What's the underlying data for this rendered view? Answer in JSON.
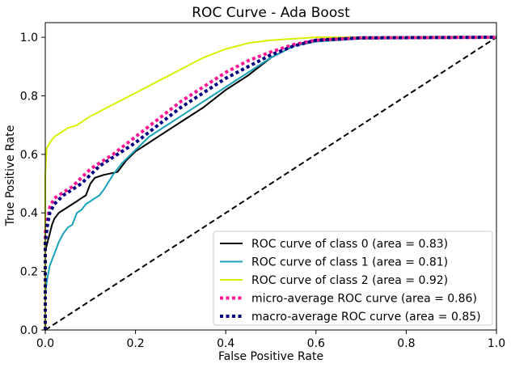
{
  "chart_data": {
    "type": "line",
    "title": "ROC Curve - Ada Boost",
    "xlabel": "False Positive Rate",
    "ylabel": "True Positive Rate",
    "xlim": [
      0.0,
      1.0
    ],
    "ylim": [
      0.0,
      1.05
    ],
    "xticks": [
      "0.0",
      "0.2",
      "0.4",
      "0.6",
      "0.8",
      "1.0"
    ],
    "yticks": [
      "0.0",
      "0.2",
      "0.4",
      "0.6",
      "0.8",
      "1.0"
    ],
    "grid": false,
    "legend_position": "lower-right",
    "series": [
      {
        "name": "ROC curve of class 0 (area = 0.83)",
        "color": "#000000",
        "style": "solid",
        "points": [
          [
            0,
            0
          ],
          [
            0,
            0.27
          ],
          [
            0.005,
            0.3
          ],
          [
            0.01,
            0.33
          ],
          [
            0.015,
            0.36
          ],
          [
            0.02,
            0.38
          ],
          [
            0.03,
            0.4
          ],
          [
            0.04,
            0.41
          ],
          [
            0.05,
            0.42
          ],
          [
            0.06,
            0.43
          ],
          [
            0.07,
            0.44
          ],
          [
            0.08,
            0.45
          ],
          [
            0.09,
            0.46
          ],
          [
            0.1,
            0.5
          ],
          [
            0.11,
            0.52
          ],
          [
            0.13,
            0.53
          ],
          [
            0.16,
            0.54
          ],
          [
            0.17,
            0.56
          ],
          [
            0.18,
            0.58
          ],
          [
            0.2,
            0.61
          ],
          [
            0.22,
            0.63
          ],
          [
            0.25,
            0.66
          ],
          [
            0.3,
            0.71
          ],
          [
            0.35,
            0.76
          ],
          [
            0.4,
            0.82
          ],
          [
            0.45,
            0.87
          ],
          [
            0.5,
            0.93
          ],
          [
            0.55,
            0.97
          ],
          [
            0.6,
            0.99
          ],
          [
            0.7,
            1.0
          ],
          [
            1.0,
            1.0
          ]
        ]
      },
      {
        "name": "ROC curve of class 1 (area = 0.81)",
        "color": "#17a2b8",
        "style": "solid",
        "points": [
          [
            0,
            0
          ],
          [
            0,
            0.13
          ],
          [
            0.005,
            0.18
          ],
          [
            0.01,
            0.22
          ],
          [
            0.02,
            0.26
          ],
          [
            0.03,
            0.3
          ],
          [
            0.04,
            0.33
          ],
          [
            0.05,
            0.35
          ],
          [
            0.06,
            0.36
          ],
          [
            0.07,
            0.4
          ],
          [
            0.08,
            0.41
          ],
          [
            0.09,
            0.43
          ],
          [
            0.1,
            0.44
          ],
          [
            0.11,
            0.45
          ],
          [
            0.12,
            0.46
          ],
          [
            0.13,
            0.48
          ],
          [
            0.15,
            0.53
          ],
          [
            0.17,
            0.57
          ],
          [
            0.19,
            0.6
          ],
          [
            0.21,
            0.63
          ],
          [
            0.23,
            0.66
          ],
          [
            0.25,
            0.68
          ],
          [
            0.3,
            0.73
          ],
          [
            0.35,
            0.78
          ],
          [
            0.4,
            0.83
          ],
          [
            0.45,
            0.88
          ],
          [
            0.5,
            0.93
          ],
          [
            0.55,
            0.97
          ],
          [
            0.6,
            0.985
          ],
          [
            0.7,
            0.995
          ],
          [
            1.0,
            1.0
          ]
        ]
      },
      {
        "name": "ROC curve of class 2 (area = 0.92)",
        "color": "#d8f000",
        "style": "solid",
        "points": [
          [
            0,
            0
          ],
          [
            0,
            0.53
          ],
          [
            0.003,
            0.62
          ],
          [
            0.01,
            0.64
          ],
          [
            0.02,
            0.66
          ],
          [
            0.03,
            0.67
          ],
          [
            0.05,
            0.69
          ],
          [
            0.07,
            0.7
          ],
          [
            0.1,
            0.73
          ],
          [
            0.15,
            0.77
          ],
          [
            0.2,
            0.81
          ],
          [
            0.25,
            0.85
          ],
          [
            0.3,
            0.89
          ],
          [
            0.35,
            0.93
          ],
          [
            0.4,
            0.96
          ],
          [
            0.45,
            0.98
          ],
          [
            0.5,
            0.99
          ],
          [
            0.55,
            0.995
          ],
          [
            0.6,
            1.0
          ],
          [
            1.0,
            1.0
          ]
        ]
      },
      {
        "name": "micro-average ROC curve (area = 0.86)",
        "color": "#ff1493",
        "style": "dotted",
        "points": [
          [
            0,
            0
          ],
          [
            0,
            0.33
          ],
          [
            0.005,
            0.38
          ],
          [
            0.01,
            0.42
          ],
          [
            0.02,
            0.45
          ],
          [
            0.04,
            0.47
          ],
          [
            0.06,
            0.49
          ],
          [
            0.08,
            0.52
          ],
          [
            0.1,
            0.55
          ],
          [
            0.12,
            0.57
          ],
          [
            0.15,
            0.6
          ],
          [
            0.2,
            0.66
          ],
          [
            0.25,
            0.72
          ],
          [
            0.3,
            0.78
          ],
          [
            0.35,
            0.83
          ],
          [
            0.4,
            0.88
          ],
          [
            0.45,
            0.92
          ],
          [
            0.5,
            0.95
          ],
          [
            0.55,
            0.975
          ],
          [
            0.6,
            0.99
          ],
          [
            0.7,
            0.998
          ],
          [
            1.0,
            1.0
          ]
        ]
      },
      {
        "name": "macro-average ROC curve (area = 0.85)",
        "color": "#000080",
        "style": "dotted",
        "points": [
          [
            0,
            0
          ],
          [
            0,
            0.3
          ],
          [
            0.005,
            0.36
          ],
          [
            0.01,
            0.4
          ],
          [
            0.02,
            0.43
          ],
          [
            0.04,
            0.46
          ],
          [
            0.06,
            0.48
          ],
          [
            0.08,
            0.5
          ],
          [
            0.1,
            0.53
          ],
          [
            0.12,
            0.56
          ],
          [
            0.15,
            0.59
          ],
          [
            0.2,
            0.64
          ],
          [
            0.25,
            0.7
          ],
          [
            0.3,
            0.76
          ],
          [
            0.35,
            0.81
          ],
          [
            0.4,
            0.86
          ],
          [
            0.45,
            0.9
          ],
          [
            0.5,
            0.94
          ],
          [
            0.55,
            0.97
          ],
          [
            0.6,
            0.99
          ],
          [
            0.7,
            0.998
          ],
          [
            1.0,
            1.0
          ]
        ]
      }
    ],
    "diagonal": {
      "color": "#000000",
      "style": "dashed",
      "points": [
        [
          0,
          0
        ],
        [
          1,
          1
        ]
      ]
    }
  }
}
